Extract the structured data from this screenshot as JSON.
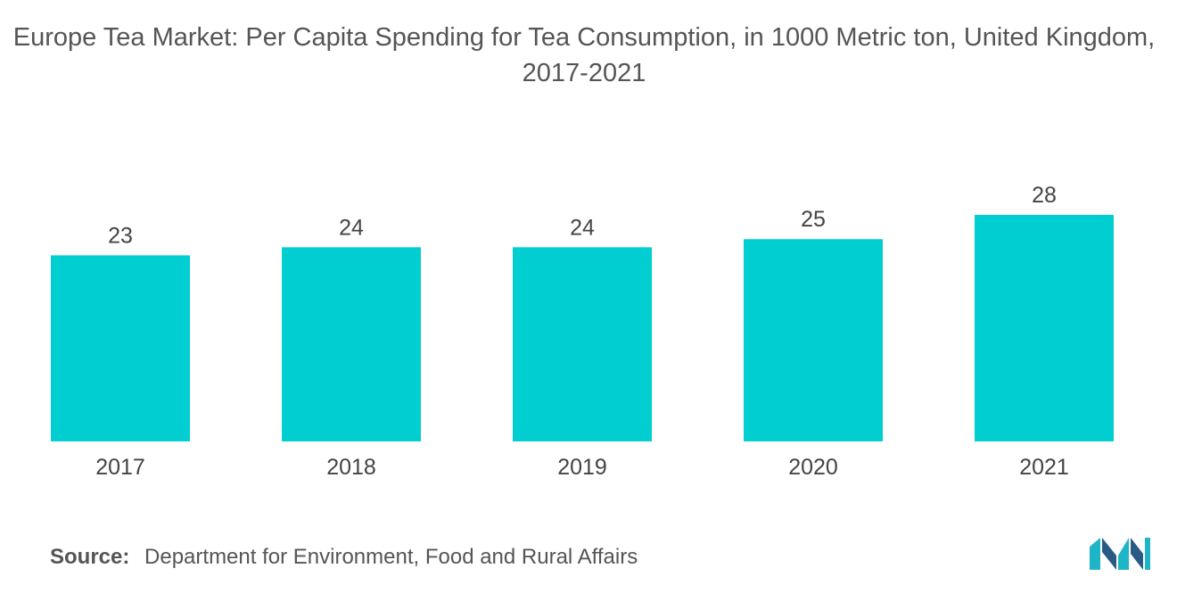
{
  "chart_data": {
    "type": "bar",
    "title": "Europe Tea Market: Per Capita Spending for Tea Consumption, in 1000 Metric ton, United Kingdom, 2017-2021",
    "categories": [
      "2017",
      "2018",
      "2019",
      "2020",
      "2021"
    ],
    "values": [
      23,
      24,
      24,
      25,
      28
    ],
    "xlabel": "",
    "ylabel": "",
    "ylim": [
      0,
      28
    ],
    "grid": false,
    "legend": "none",
    "bar_color": "#00CED1",
    "data_labels": true
  },
  "source": {
    "label": "Source:",
    "text": "Department for Environment, Food and Rural Affairs"
  },
  "logo": {
    "icon": "mordor-intelligence-logo",
    "colors": [
      "#1FB5C8",
      "#2A5B84"
    ]
  }
}
